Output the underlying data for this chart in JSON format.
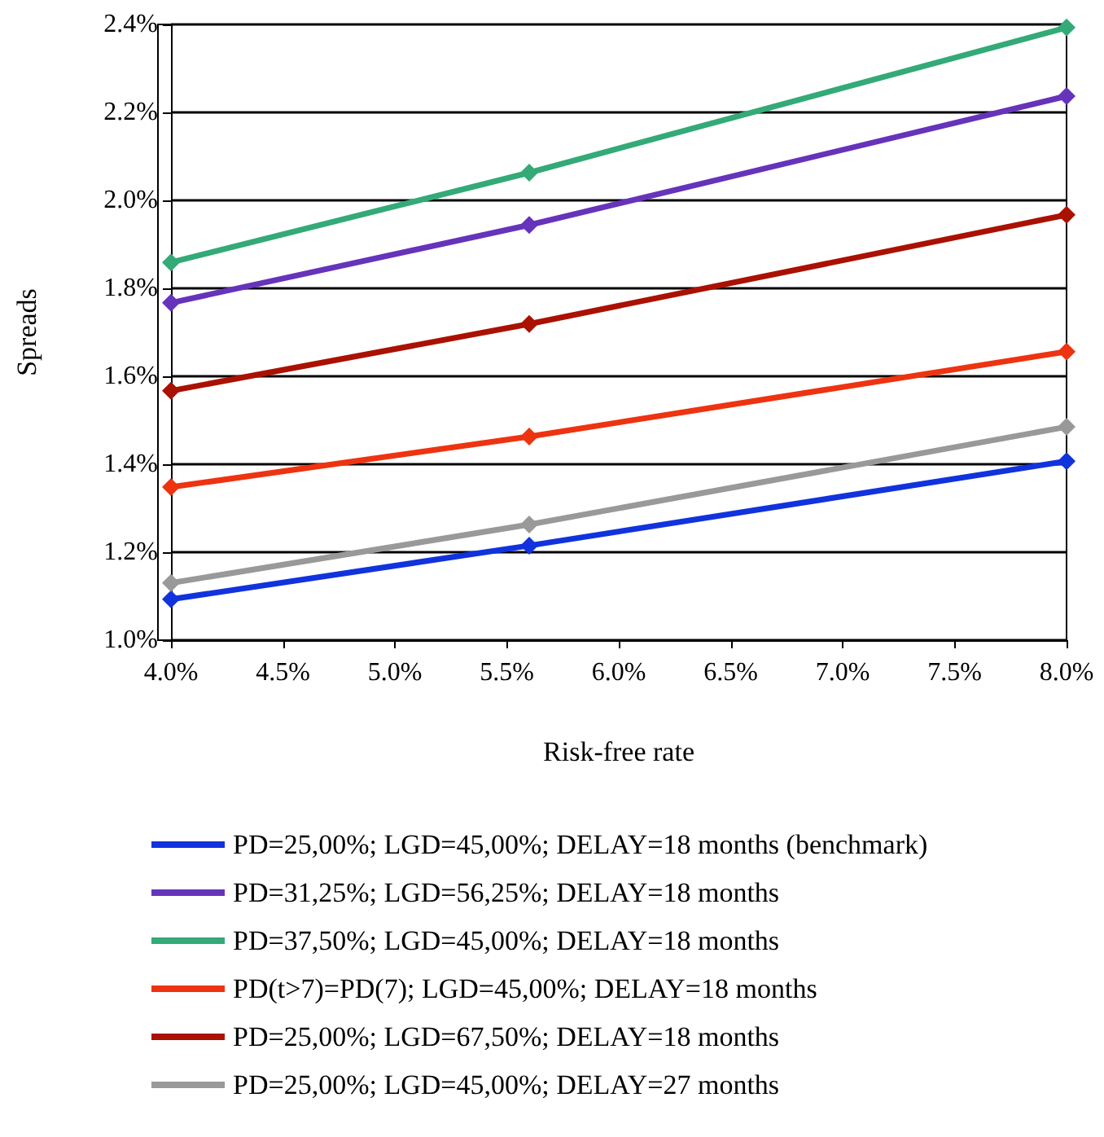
{
  "chart_data": {
    "type": "line",
    "xlabel": "Risk-free rate",
    "ylabel": "Spreads",
    "x": [
      4.0,
      5.6,
      8.0
    ],
    "series": [
      {
        "name": "PD=25,00%; LGD=45,00%; DELAY=18 months (benchmark)",
        "color": "#1133dd",
        "values": [
          1.093,
          1.215,
          1.407
        ]
      },
      {
        "name": "PD=31,25%; LGD=56,25%; DELAY=18 months",
        "color": "#6633bb",
        "values": [
          1.767,
          1.944,
          2.237
        ]
      },
      {
        "name": "PD=37,50%; LGD=45,00%; DELAY=18 months",
        "color": "#33aa77",
        "values": [
          1.859,
          2.063,
          2.393
        ]
      },
      {
        "name": "PD(t>7)=PD(7); LGD=45,00%; DELAY=18 months",
        "color": "#ee3311",
        "values": [
          1.348,
          1.463,
          1.656
        ]
      },
      {
        "name": "PD=25,00%; LGD=67,50%; DELAY=18 months",
        "color": "#aa1100",
        "values": [
          1.567,
          1.719,
          1.967
        ]
      },
      {
        "name": "PD=25,00%; LGD=45,00%; DELAY=27 months",
        "color": "#999999",
        "values": [
          1.13,
          1.263,
          1.485
        ]
      }
    ],
    "xlim": [
      4.0,
      8.0
    ],
    "xticks": [
      {
        "value": 4.0,
        "label": "4.0%"
      },
      {
        "value": 4.5,
        "label": "4.5%"
      },
      {
        "value": 5.0,
        "label": "5.0%"
      },
      {
        "value": 5.5,
        "label": "5.5%"
      },
      {
        "value": 6.0,
        "label": "6.0%"
      },
      {
        "value": 6.5,
        "label": "6.5%"
      },
      {
        "value": 7.0,
        "label": "7.0%"
      },
      {
        "value": 7.5,
        "label": "7.5%"
      },
      {
        "value": 8.0,
        "label": "8.0%"
      }
    ],
    "ylim": [
      1.0,
      2.4
    ],
    "yticks": [
      {
        "value": 1.0,
        "label": "1.0%"
      },
      {
        "value": 1.2,
        "label": "1.2%"
      },
      {
        "value": 1.4,
        "label": "1.4%"
      },
      {
        "value": 1.6,
        "label": "1.6%"
      },
      {
        "value": 1.8,
        "label": "1.8%"
      },
      {
        "value": 2.0,
        "label": "2.0%"
      },
      {
        "value": 2.2,
        "label": "2.2%"
      },
      {
        "value": 2.4,
        "label": "2.4%"
      }
    ],
    "grid": "y",
    "legend": "bottom",
    "marker": "diamond",
    "line_style": "solid"
  }
}
